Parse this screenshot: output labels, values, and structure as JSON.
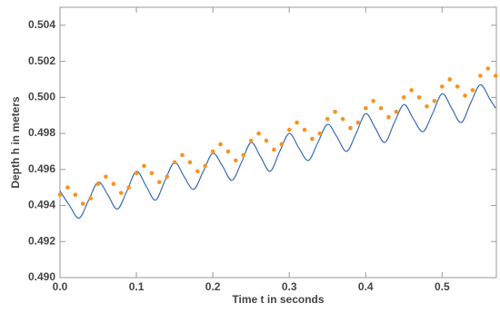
{
  "chart_data": {
    "type": "line",
    "xlabel": "Time t in seconds",
    "ylabel": "Depth h in meters",
    "xlim": [
      0,
      0.571
    ],
    "ylim": [
      0.49,
      0.505
    ],
    "xticks": [
      {
        "value": 0,
        "label": "0.0"
      },
      0.1,
      0.2,
      0.3,
      0.4,
      0.5
    ],
    "yticks": [
      {
        "value": 0.49,
        "label": "0.490"
      },
      0.492,
      0.494,
      0.496,
      0.498,
      {
        "value": 0.5,
        "label": "0.500"
      },
      0.502,
      0.504
    ],
    "series": [
      {
        "type": "line",
        "color": "#3d6db4",
        "x": [
          0,
          0.0125,
          0.025,
          0.0375,
          0.05,
          0.0625,
          0.075,
          0.0875,
          0.1,
          0.1125,
          0.125,
          0.1375,
          0.15,
          0.1625,
          0.175,
          0.1875,
          0.2,
          0.2125,
          0.225,
          0.2375,
          0.25,
          0.2625,
          0.275,
          0.2875,
          0.3,
          0.3125,
          0.325,
          0.3375,
          0.35,
          0.3625,
          0.375,
          0.3875,
          0.4,
          0.4125,
          0.425,
          0.4375,
          0.45,
          0.4625,
          0.475,
          0.4875,
          0.5,
          0.5125,
          0.525,
          0.5375,
          0.55,
          0.5625,
          0.57
        ],
        "values": [
          0.4948,
          0.494,
          0.4933,
          0.4943,
          0.4953,
          0.4946,
          0.4938,
          0.4948,
          0.4959,
          0.4951,
          0.4943,
          0.4954,
          0.4964,
          0.4956,
          0.4949,
          0.4959,
          0.4969,
          0.4962,
          0.4954,
          0.4964,
          0.4975,
          0.4967,
          0.4959,
          0.497,
          0.498,
          0.4972,
          0.4965,
          0.4975,
          0.4985,
          0.4978,
          0.497,
          0.498,
          0.4991,
          0.4983,
          0.4975,
          0.4986,
          0.4996,
          0.4988,
          0.4981,
          0.4991,
          0.5002,
          0.4994,
          0.4986,
          0.4997,
          0.5007,
          0.4999,
          0.4994
        ]
      },
      {
        "type": "scatter",
        "color": "#f7931e",
        "x": [
          0,
          0.01,
          0.02,
          0.03,
          0.04,
          0.05,
          0.06,
          0.07,
          0.08,
          0.09,
          0.1,
          0.11,
          0.12,
          0.13,
          0.14,
          0.15,
          0.16,
          0.17,
          0.18,
          0.19,
          0.2,
          0.21,
          0.22,
          0.23,
          0.24,
          0.25,
          0.26,
          0.27,
          0.28,
          0.29,
          0.3,
          0.31,
          0.32,
          0.33,
          0.34,
          0.35,
          0.36,
          0.37,
          0.38,
          0.39,
          0.4,
          0.41,
          0.42,
          0.43,
          0.44,
          0.45,
          0.46,
          0.47,
          0.48,
          0.49,
          0.5,
          0.51,
          0.52,
          0.53,
          0.54,
          0.55,
          0.56,
          0.57
        ],
        "values": [
          0.4946,
          0.495,
          0.4946,
          0.4941,
          0.4944,
          0.4952,
          0.4956,
          0.4952,
          0.4947,
          0.495,
          0.4958,
          0.4962,
          0.4958,
          0.4953,
          0.4956,
          0.4964,
          0.4968,
          0.4964,
          0.4959,
          0.4962,
          0.497,
          0.4974,
          0.497,
          0.4965,
          0.4968,
          0.4976,
          0.498,
          0.4976,
          0.4971,
          0.4974,
          0.4982,
          0.4986,
          0.4982,
          0.4977,
          0.498,
          0.4988,
          0.4992,
          0.4988,
          0.4983,
          0.4986,
          0.4994,
          0.4998,
          0.4994,
          0.4989,
          0.4992,
          0.5,
          0.5004,
          0.5,
          0.4995,
          0.4998,
          0.5006,
          0.501,
          0.5006,
          0.5001,
          0.5004,
          0.5012,
          0.5016,
          0.5012
        ]
      }
    ]
  }
}
